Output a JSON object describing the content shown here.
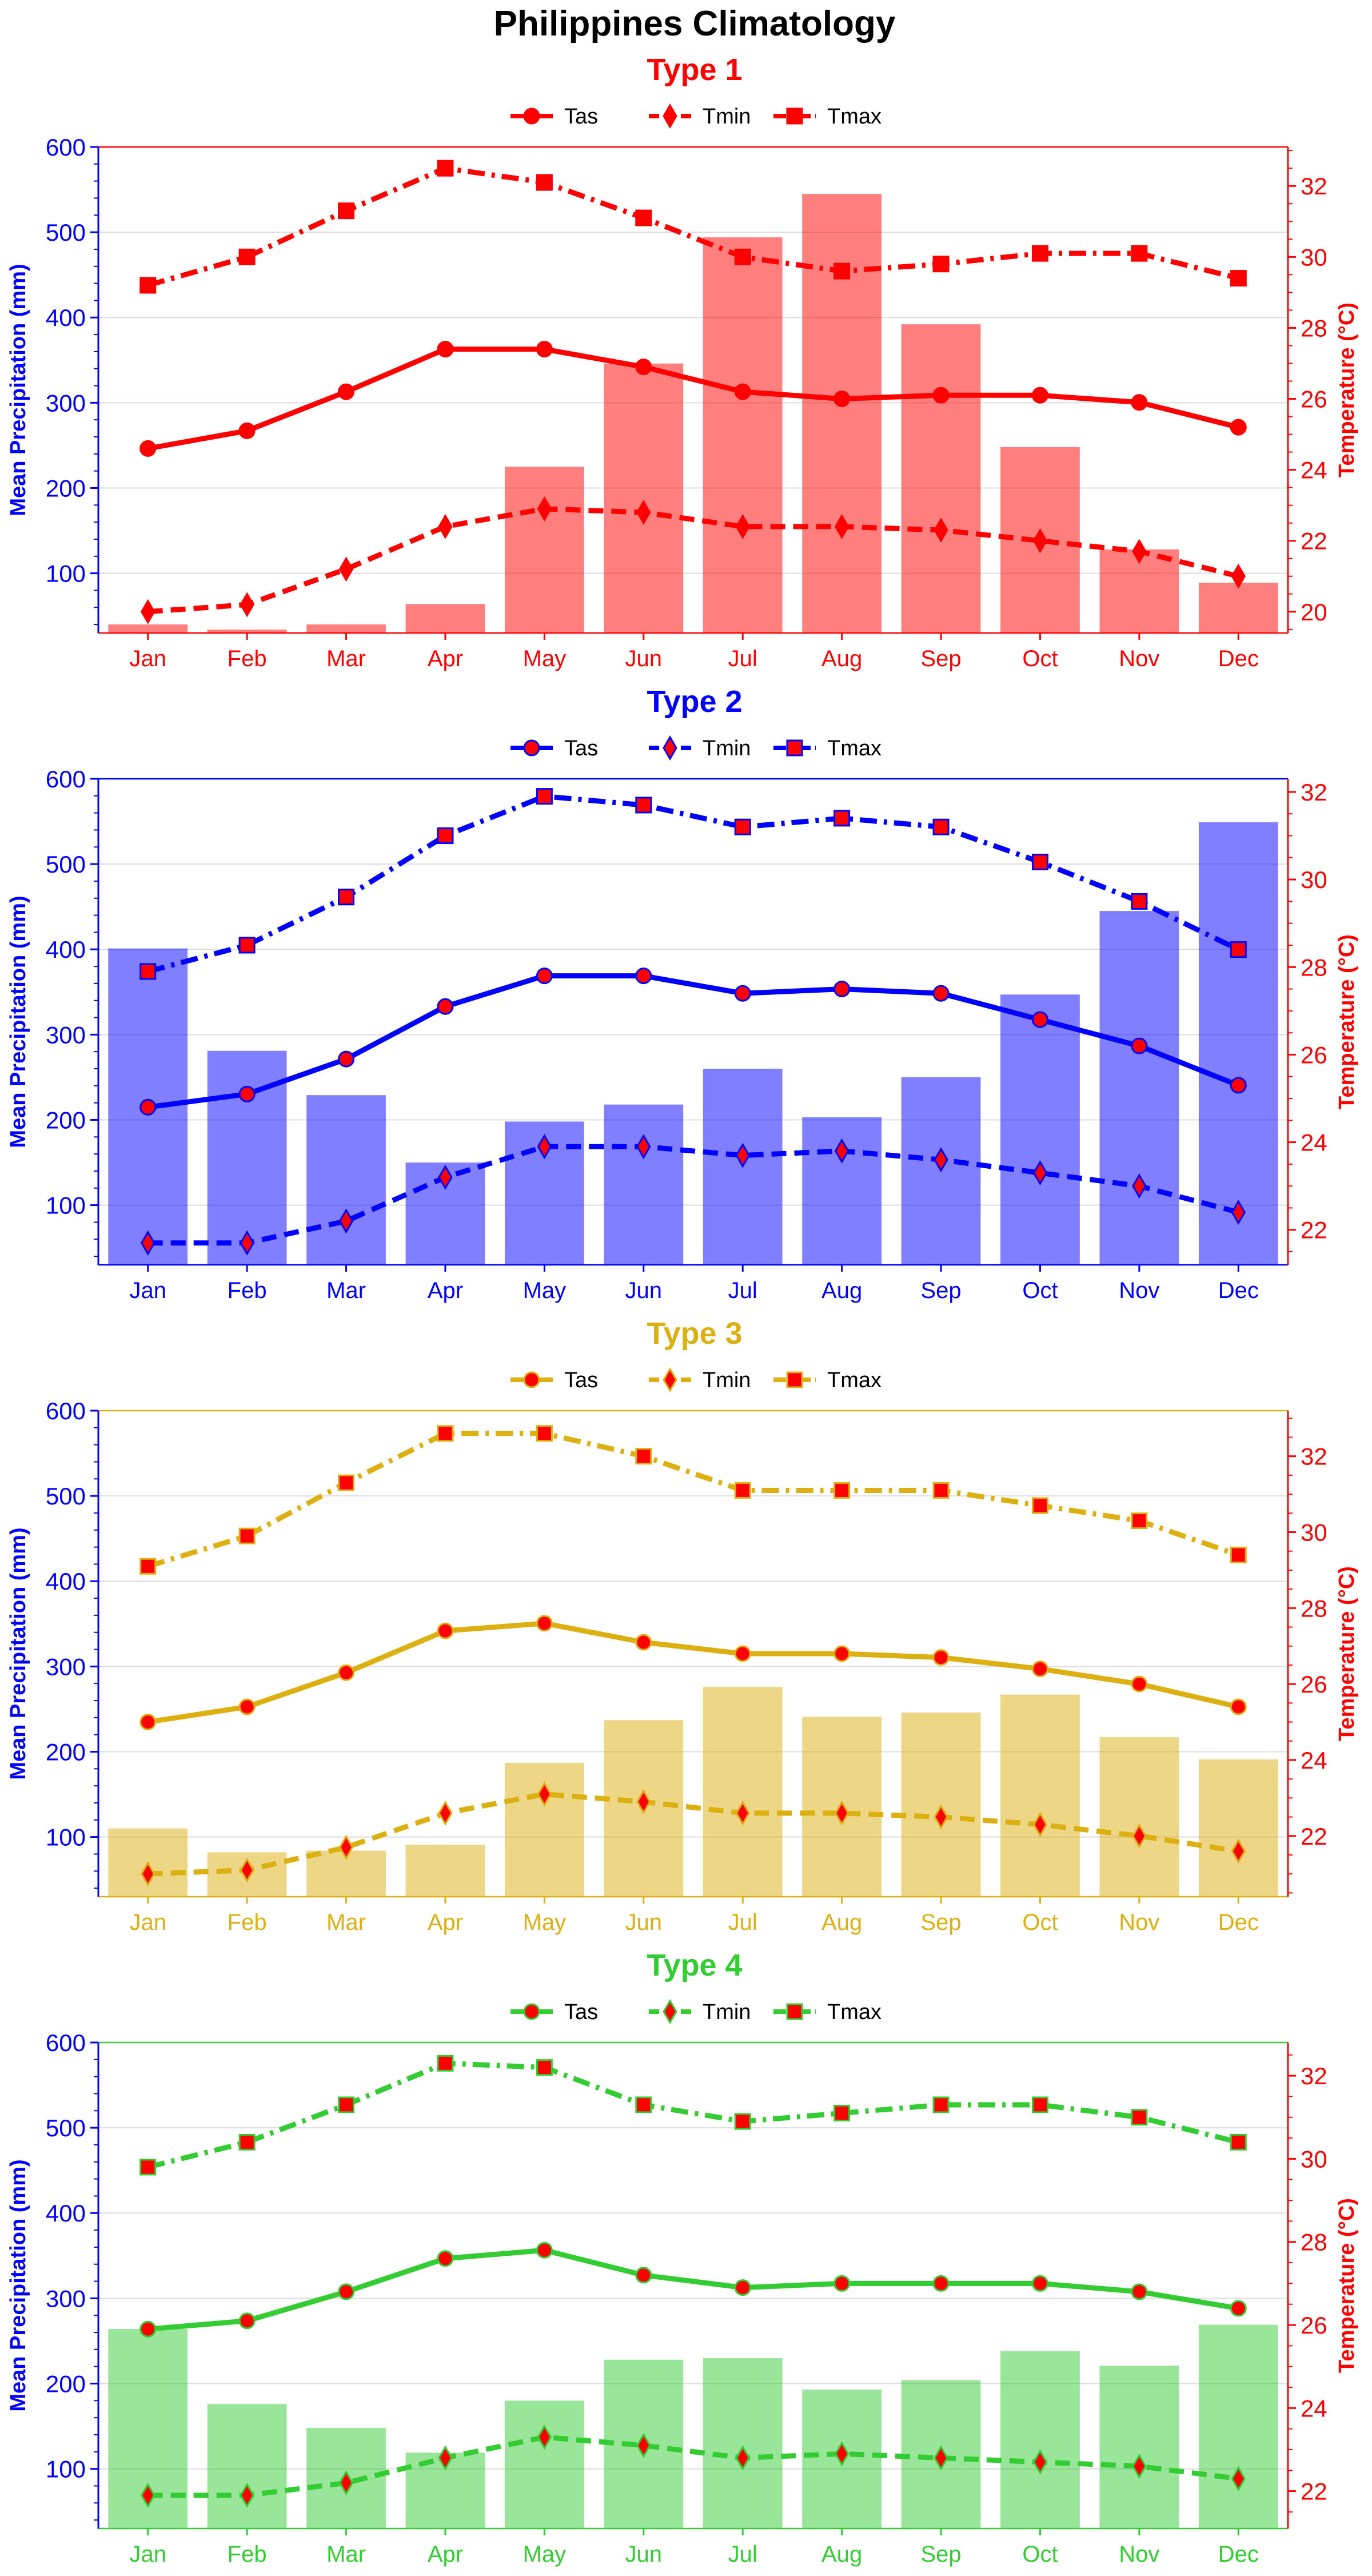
{
  "figure_title": "Philippines Climatology",
  "legend_labels": {
    "tas": "Tas",
    "tmin": "Tmin",
    "tmax": "Tmax"
  },
  "chart_data": [
    {
      "type": "bar+line",
      "title": "Type 1",
      "color": "#ff0000",
      "y_left_label": "Mean Precipitation (mm)",
      "y_right_label": "Temperature (°C)",
      "left_axis_color": "#0000ff",
      "right_axis_color": "#ff0000",
      "categories": [
        "Jan",
        "Feb",
        "Mar",
        "Apr",
        "May",
        "Jun",
        "Jul",
        "Aug",
        "Sep",
        "Oct",
        "Nov",
        "Dec"
      ],
      "y_left_lim": [
        30,
        600
      ],
      "y_left_ticks": [
        100,
        200,
        300,
        400,
        500,
        600
      ],
      "y_right_lim": [
        19.4,
        33.1
      ],
      "y_right_ticks": [
        20,
        22,
        24,
        26,
        28,
        30,
        32
      ],
      "grid": true,
      "legend_placement": "top-center",
      "precipitation": [
        40,
        34,
        40,
        64,
        225,
        346,
        494,
        545,
        392,
        248,
        128,
        89
      ],
      "series": [
        {
          "name": "Tas",
          "style": "solid",
          "marker": "circle",
          "values": [
            24.6,
            25.1,
            26.2,
            27.4,
            27.4,
            26.9,
            26.2,
            26.0,
            26.1,
            26.1,
            25.9,
            25.2
          ]
        },
        {
          "name": "Tmin",
          "style": "dashed",
          "marker": "diamond",
          "values": [
            20.0,
            20.2,
            21.2,
            22.4,
            22.9,
            22.8,
            22.4,
            22.4,
            22.3,
            22.0,
            21.7,
            21.0
          ]
        },
        {
          "name": "Tmax",
          "style": "dashdot",
          "marker": "square",
          "values": [
            29.2,
            30.0,
            31.3,
            32.5,
            32.1,
            31.1,
            30.0,
            29.6,
            29.8,
            30.1,
            30.1,
            29.4
          ]
        }
      ]
    },
    {
      "type": "bar+line",
      "title": "Type 2",
      "color": "#0000ff",
      "y_left_label": "Mean Precipitation (mm)",
      "y_right_label": "Temperature (°C)",
      "left_axis_color": "#0000ff",
      "right_axis_color": "#ff0000",
      "categories": [
        "Jan",
        "Feb",
        "Mar",
        "Apr",
        "May",
        "Jun",
        "Jul",
        "Aug",
        "Sep",
        "Oct",
        "Nov",
        "Dec"
      ],
      "y_left_lim": [
        30,
        600
      ],
      "y_left_ticks": [
        100,
        200,
        300,
        400,
        500,
        600
      ],
      "y_right_lim": [
        21.2,
        32.3
      ],
      "y_right_ticks": [
        22,
        24,
        26,
        28,
        30,
        32
      ],
      "grid": true,
      "legend_placement": "top-center",
      "precipitation": [
        401,
        281,
        229,
        150,
        198,
        218,
        260,
        203,
        250,
        347,
        445,
        549
      ],
      "series": [
        {
          "name": "Tas",
          "style": "solid",
          "marker": "circle",
          "values": [
            24.8,
            25.1,
            25.9,
            27.1,
            27.8,
            27.8,
            27.4,
            27.5,
            27.4,
            26.8,
            26.2,
            25.3
          ]
        },
        {
          "name": "Tmin",
          "style": "dashed",
          "marker": "diamond",
          "values": [
            21.7,
            21.7,
            22.2,
            23.2,
            23.9,
            23.9,
            23.7,
            23.8,
            23.6,
            23.3,
            23.0,
            22.4
          ]
        },
        {
          "name": "Tmax",
          "style": "dashdot",
          "marker": "square",
          "values": [
            27.9,
            28.5,
            29.6,
            31.0,
            31.9,
            31.7,
            31.2,
            31.4,
            31.2,
            30.4,
            29.5,
            28.4
          ]
        }
      ]
    },
    {
      "type": "bar+line",
      "title": "Type 3",
      "color": "#dbb010",
      "y_left_label": "Mean Precipitation (mm)",
      "y_right_label": "Temperature (°C)",
      "left_axis_color": "#0000ff",
      "right_axis_color": "#ff0000",
      "categories": [
        "Jan",
        "Feb",
        "Mar",
        "Apr",
        "May",
        "Jun",
        "Jul",
        "Aug",
        "Sep",
        "Oct",
        "Nov",
        "Dec"
      ],
      "y_left_lim": [
        30,
        600
      ],
      "y_left_ticks": [
        100,
        200,
        300,
        400,
        500,
        600
      ],
      "y_right_lim": [
        20.4,
        33.2
      ],
      "y_right_ticks": [
        22,
        24,
        26,
        28,
        30,
        32
      ],
      "grid": true,
      "legend_placement": "top-center",
      "precipitation": [
        110,
        82,
        84,
        91,
        187,
        237,
        276,
        241,
        246,
        267,
        217,
        191
      ],
      "series": [
        {
          "name": "Tas",
          "style": "solid",
          "marker": "circle",
          "values": [
            25.0,
            25.4,
            26.3,
            27.4,
            27.6,
            27.1,
            26.8,
            26.8,
            26.7,
            26.4,
            26.0,
            25.4
          ]
        },
        {
          "name": "Tmin",
          "style": "dashed",
          "marker": "diamond",
          "values": [
            21.0,
            21.1,
            21.7,
            22.6,
            23.1,
            22.9,
            22.6,
            22.6,
            22.5,
            22.3,
            22.0,
            21.6
          ]
        },
        {
          "name": "Tmax",
          "style": "dashdot",
          "marker": "square",
          "values": [
            29.1,
            29.9,
            31.3,
            32.6,
            32.6,
            32.0,
            31.1,
            31.1,
            31.1,
            30.7,
            30.3,
            29.4
          ]
        }
      ]
    },
    {
      "type": "bar+line",
      "title": "Type 4",
      "color": "#33cc33",
      "y_left_label": "Mean Precipitation (mm)",
      "y_right_label": "Temperature (°C)",
      "left_axis_color": "#0000ff",
      "right_axis_color": "#ff0000",
      "categories": [
        "Jan",
        "Feb",
        "Mar",
        "Apr",
        "May",
        "Jun",
        "Jul",
        "Aug",
        "Sep",
        "Oct",
        "Nov",
        "Dec"
      ],
      "y_left_lim": [
        30,
        600
      ],
      "y_left_ticks": [
        100,
        200,
        300,
        400,
        500,
        600
      ],
      "y_right_lim": [
        21.1,
        32.8
      ],
      "y_right_ticks": [
        22,
        24,
        26,
        28,
        30,
        32
      ],
      "grid": true,
      "legend_placement": "top-center",
      "precipitation": [
        264,
        176,
        148,
        119,
        180,
        228,
        230,
        193,
        204,
        238,
        221,
        269
      ],
      "series": [
        {
          "name": "Tas",
          "style": "solid",
          "marker": "circle",
          "values": [
            25.9,
            26.1,
            26.8,
            27.6,
            27.8,
            27.2,
            26.9,
            27.0,
            27.0,
            27.0,
            26.8,
            26.4
          ]
        },
        {
          "name": "Tmin",
          "style": "dashed",
          "marker": "diamond",
          "values": [
            21.9,
            21.9,
            22.2,
            22.8,
            23.3,
            23.1,
            22.8,
            22.9,
            22.8,
            22.7,
            22.6,
            22.3
          ]
        },
        {
          "name": "Tmax",
          "style": "dashdot",
          "marker": "square",
          "values": [
            29.8,
            30.4,
            31.3,
            32.3,
            32.2,
            31.3,
            30.9,
            31.1,
            31.3,
            31.3,
            31.0,
            30.4
          ]
        }
      ]
    }
  ]
}
